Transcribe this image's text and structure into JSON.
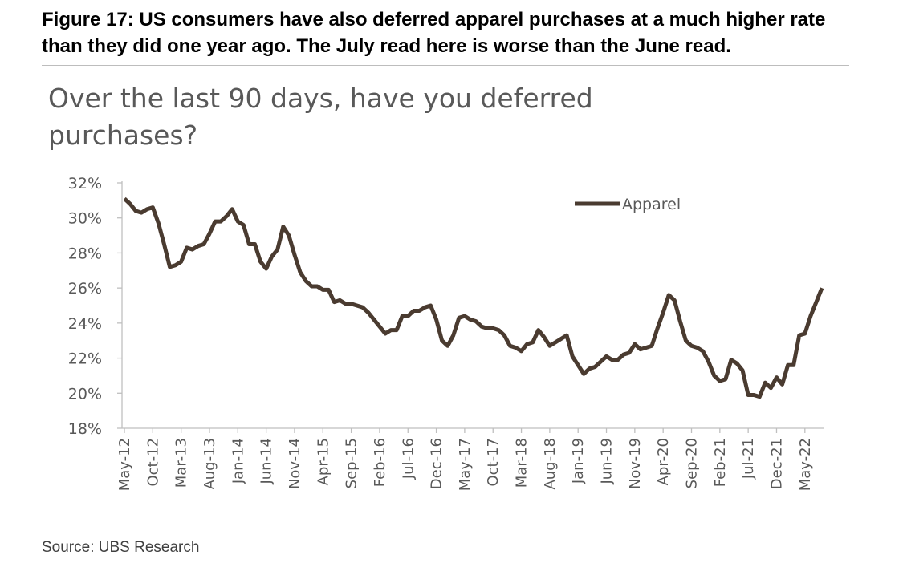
{
  "figure": {
    "title": "Figure 17: US consumers have also deferred apparel purchases at a much higher rate than they did one year ago. The July read here is worse than the June read."
  },
  "source": "Source: UBS Research",
  "colors": {
    "line": "#4a3b30",
    "axis": "#bfbfbf",
    "text": "#595959"
  },
  "chart_data": {
    "type": "line",
    "title": "Over the last 90 days, have you deferred purchases?",
    "xlabel": "",
    "ylabel": "",
    "ylim": [
      18,
      32
    ],
    "yticks": [
      18,
      20,
      22,
      24,
      26,
      28,
      30,
      32
    ],
    "ytick_labels": [
      "18%",
      "20%",
      "22%",
      "24%",
      "26%",
      "28%",
      "30%",
      "32%"
    ],
    "xtick_labels": [
      "May-12",
      "Oct-12",
      "Mar-13",
      "Aug-13",
      "Jan-14",
      "Jun-14",
      "Nov-14",
      "Apr-15",
      "Sep-15",
      "Feb-16",
      "Jul-16",
      "Dec-16",
      "May-17",
      "Oct-17",
      "Mar-18",
      "Aug-18",
      "Jan-19",
      "Jun-19",
      "Nov-19",
      "Apr-20",
      "Sep-20",
      "Feb-21",
      "Jul-21",
      "Dec-21",
      "May-22"
    ],
    "xtick_step_months": 5,
    "start": "May-12",
    "end": "Jul-22",
    "legend": {
      "position": "top-right"
    },
    "series": [
      {
        "name": "Apparel",
        "values": [
          31.1,
          30.8,
          30.4,
          30.3,
          30.5,
          30.6,
          29.7,
          28.5,
          27.2,
          27.3,
          27.5,
          28.3,
          28.2,
          28.4,
          28.5,
          29.1,
          29.8,
          29.8,
          30.1,
          30.5,
          29.8,
          29.6,
          28.5,
          28.5,
          27.5,
          27.1,
          27.8,
          28.2,
          29.5,
          29.0,
          27.9,
          26.9,
          26.4,
          26.1,
          26.1,
          25.9,
          25.9,
          25.2,
          25.3,
          25.1,
          25.1,
          25.0,
          24.9,
          24.6,
          24.2,
          23.8,
          23.4,
          23.6,
          23.6,
          24.4,
          24.4,
          24.7,
          24.7,
          24.9,
          25.0,
          24.2,
          23.0,
          22.7,
          23.3,
          24.3,
          24.4,
          24.2,
          24.1,
          23.8,
          23.7,
          23.7,
          23.6,
          23.3,
          22.7,
          22.6,
          22.4,
          22.8,
          22.9,
          23.6,
          23.2,
          22.7,
          22.9,
          23.1,
          23.3,
          22.1,
          21.6,
          21.1,
          21.4,
          21.5,
          21.8,
          22.1,
          21.9,
          21.9,
          22.2,
          22.3,
          22.8,
          22.5,
          22.6,
          22.7,
          23.7,
          24.6,
          25.6,
          25.3,
          24.1,
          23.0,
          22.7,
          22.6,
          22.4,
          21.8,
          21.0,
          20.7,
          20.8,
          21.9,
          21.7,
          21.3,
          19.9,
          19.9,
          19.8,
          20.6,
          20.3,
          20.9,
          20.5,
          21.6,
          21.6,
          23.3,
          23.4,
          24.4,
          25.2,
          26.0
        ]
      }
    ]
  }
}
